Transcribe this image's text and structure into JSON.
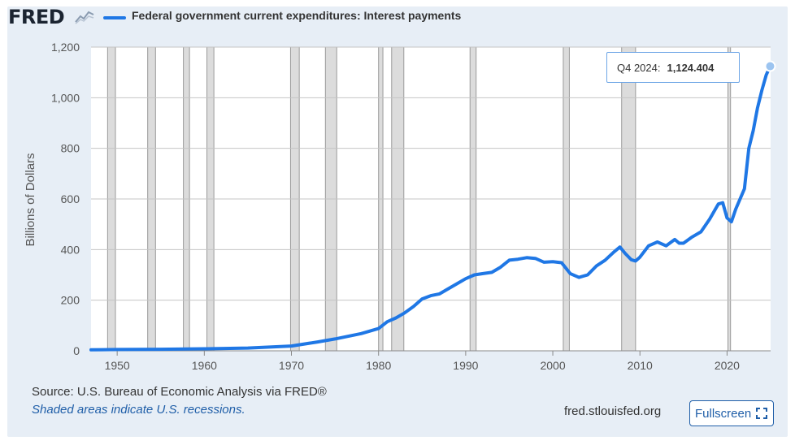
{
  "brand": {
    "logo_text": "FRED",
    "site": "fred.stlouisfed.org"
  },
  "legend": {
    "label": "Federal government current expenditures: Interest payments",
    "color": "#1f77e5"
  },
  "footer": {
    "source": "Source: U.S. Bureau of Economic Analysis via FRED®",
    "recession_note": "Shaded areas indicate U.S. recessions.",
    "fullscreen_label": "Fullscreen"
  },
  "tooltip": {
    "period": "Q4 2024:",
    "value": "1,124.404"
  },
  "chart_data": {
    "type": "line",
    "title": "Federal government current expenditures: Interest payments",
    "ylabel": "Billions of Dollars",
    "xlabel": "",
    "xlim": [
      1947.0,
      2025.0
    ],
    "ylim": [
      0,
      1200
    ],
    "yticks": [
      0,
      200,
      400,
      600,
      800,
      1000,
      1200
    ],
    "ytick_labels": [
      "0",
      "200",
      "400",
      "600",
      "800",
      "1,000",
      "1,200"
    ],
    "xticks": [
      1950,
      1960,
      1970,
      1980,
      1990,
      2000,
      2010,
      2020
    ],
    "xtick_labels": [
      "1950",
      "1960",
      "1970",
      "1980",
      "1990",
      "2000",
      "2010",
      "2020"
    ],
    "recessions": [
      [
        1948.9,
        1949.8
      ],
      [
        1953.5,
        1954.4
      ],
      [
        1957.6,
        1958.3
      ],
      [
        1960.3,
        1961.1
      ],
      [
        1969.9,
        1970.9
      ],
      [
        1973.9,
        1975.2
      ],
      [
        1980.0,
        1980.5
      ],
      [
        1981.5,
        1982.9
      ],
      [
        1990.5,
        1991.2
      ],
      [
        2001.2,
        2001.9
      ],
      [
        2007.9,
        2009.5
      ],
      [
        2020.1,
        2020.4
      ]
    ],
    "series": [
      {
        "name": "Federal government current expenditures: Interest payments",
        "color": "#1f77e5",
        "x": [
          1947,
          1950,
          1955,
          1960,
          1965,
          1970,
          1973,
          1975,
          1978,
          1980,
          1981,
          1982,
          1983,
          1984,
          1985,
          1986,
          1987,
          1988,
          1989,
          1990,
          1991,
          1992,
          1993,
          1994,
          1995,
          1996,
          1997,
          1998,
          1999,
          2000,
          2001,
          2002,
          2003,
          2004,
          2005,
          2006,
          2007,
          2007.7,
          2008.3,
          2009,
          2009.5,
          2010,
          2011,
          2012,
          2013,
          2014,
          2014.5,
          2015,
          2016,
          2017,
          2018,
          2019,
          2019.5,
          2020,
          2020.5,
          2021,
          2022,
          2022.5,
          2023,
          2023.5,
          2024,
          2024.5,
          2024.95
        ],
        "values": [
          4,
          5,
          6,
          8,
          11,
          19,
          35,
          47,
          68,
          88,
          115,
          130,
          150,
          175,
          205,
          218,
          225,
          245,
          265,
          285,
          300,
          305,
          310,
          330,
          358,
          362,
          368,
          365,
          350,
          352,
          348,
          305,
          290,
          300,
          335,
          358,
          390,
          410,
          385,
          360,
          355,
          370,
          415,
          430,
          415,
          440,
          425,
          425,
          450,
          470,
          520,
          580,
          585,
          525,
          510,
          560,
          640,
          800,
          870,
          960,
          1030,
          1090,
          1124.404
        ]
      }
    ]
  }
}
